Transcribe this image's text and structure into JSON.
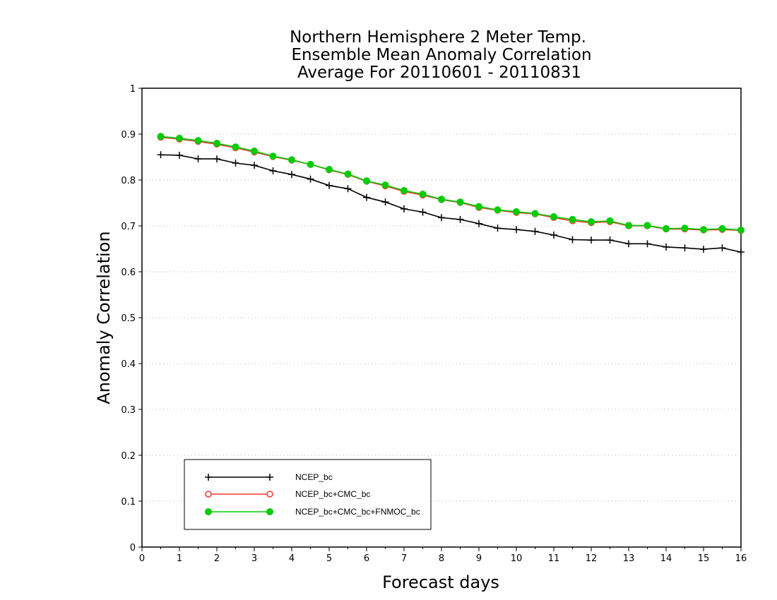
{
  "chart_data": {
    "type": "line",
    "title": [
      "Northern Hemisphere 2 Meter Temp.",
      "Ensemble Mean Anomaly Correlation",
      "Average For 20110601 - 20110831"
    ],
    "xlabel": "Forecast days",
    "ylabel": "Anomaly Correlation",
    "xlim": [
      0,
      16
    ],
    "ylim": [
      0,
      1
    ],
    "xticks": [
      "0",
      "1",
      "2",
      "3",
      "4",
      "5",
      "6",
      "7",
      "8",
      "9",
      "10",
      "11",
      "12",
      "13",
      "14",
      "15",
      "16"
    ],
    "yticks": [
      "0",
      "0.1",
      "0.2",
      "0.3",
      "0.4",
      "0.5",
      "0.6",
      "0.7",
      "0.8",
      "0.9",
      "1"
    ],
    "grid": "horizontal dotted",
    "legend_position": "bottom-left",
    "x": [
      0.5,
      1,
      1.5,
      2,
      2.5,
      3,
      3.5,
      4,
      4.5,
      5,
      5.5,
      6,
      6.5,
      7,
      7.5,
      8,
      8.5,
      9,
      9.5,
      10,
      10.5,
      11,
      11.5,
      12,
      12.5,
      13,
      13.5,
      14,
      14.5,
      15,
      15.5,
      16
    ],
    "series": [
      {
        "name": "NCEP_bc",
        "marker": "plus",
        "color": "#000000",
        "values": [
          0.855,
          0.854,
          0.846,
          0.846,
          0.837,
          0.832,
          0.82,
          0.812,
          0.802,
          0.788,
          0.781,
          0.762,
          0.752,
          0.737,
          0.73,
          0.718,
          0.714,
          0.705,
          0.695,
          0.692,
          0.688,
          0.68,
          0.67,
          0.669,
          0.669,
          0.661,
          0.661,
          0.654,
          0.652,
          0.649,
          0.652,
          0.643
        ]
      },
      {
        "name": "NCEP_bc+CMC_bc",
        "marker": "open-circle",
        "color": "#ff3333",
        "values": [
          0.893,
          0.889,
          0.884,
          0.878,
          0.87,
          0.861,
          0.851,
          0.843,
          0.834,
          0.822,
          0.812,
          0.797,
          0.787,
          0.775,
          0.767,
          0.757,
          0.751,
          0.74,
          0.734,
          0.729,
          0.726,
          0.718,
          0.711,
          0.707,
          0.709,
          0.7,
          0.7,
          0.693,
          0.693,
          0.691,
          0.692,
          0.69
        ]
      },
      {
        "name": "NCEP_bc+CMC_bc+FNMOC_bc",
        "marker": "filled-circle",
        "color": "#00cc00",
        "values": [
          0.895,
          0.891,
          0.886,
          0.88,
          0.872,
          0.863,
          0.852,
          0.844,
          0.834,
          0.823,
          0.813,
          0.798,
          0.789,
          0.777,
          0.769,
          0.758,
          0.752,
          0.742,
          0.735,
          0.731,
          0.727,
          0.72,
          0.714,
          0.709,
          0.711,
          0.701,
          0.701,
          0.694,
          0.695,
          0.692,
          0.694,
          0.691
        ]
      }
    ]
  }
}
